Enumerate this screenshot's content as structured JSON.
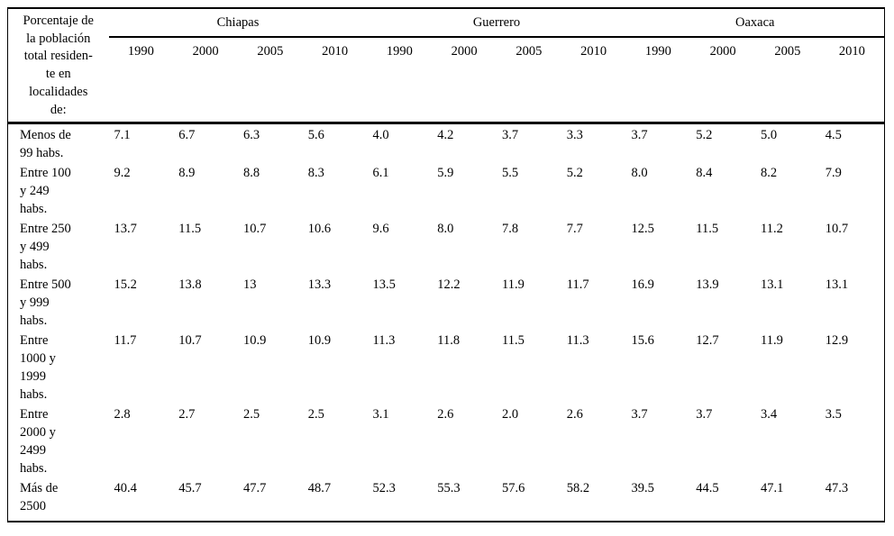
{
  "table": {
    "stub_header": "Porcentaje de\nla población\ntotal residen-\nte en\nlocalidades\nde:",
    "state_groups": [
      {
        "name": "Chiapas",
        "years": [
          "1990",
          "2000",
          "2005",
          "2010"
        ]
      },
      {
        "name": "Guerrero",
        "years": [
          "1990",
          "2000",
          "2005",
          "2010"
        ]
      },
      {
        "name": "Oaxaca",
        "years": [
          "1990",
          "2000",
          "2005",
          "2010"
        ]
      }
    ],
    "rows": [
      {
        "label": "Menos de\n99 habs.",
        "values": [
          "7.1",
          "6.7",
          "6.3",
          "5.6",
          "4.0",
          "4.2",
          "3.7",
          "3.3",
          "3.7",
          "5.2",
          "5.0",
          "4.5"
        ]
      },
      {
        "label": "Entre 100\ny 249\nhabs.",
        "values": [
          "9.2",
          "8.9",
          "8.8",
          "8.3",
          "6.1",
          "5.9",
          "5.5",
          "5.2",
          "8.0",
          "8.4",
          "8.2",
          "7.9"
        ]
      },
      {
        "label": "Entre 250\ny 499\nhabs.",
        "values": [
          "13.7",
          "11.5",
          "10.7",
          "10.6",
          "9.6",
          "8.0",
          "7.8",
          "7.7",
          "12.5",
          "11.5",
          "11.2",
          "10.7"
        ]
      },
      {
        "label": "Entre 500\ny 999\nhabs.",
        "values": [
          "15.2",
          "13.8",
          "13",
          "13.3",
          "13.5",
          "12.2",
          "11.9",
          "11.7",
          "16.9",
          "13.9",
          "13.1",
          "13.1"
        ]
      },
      {
        "label": "Entre\n1000 y\n1999\nhabs.",
        "values": [
          "11.7",
          "10.7",
          "10.9",
          "10.9",
          "11.3",
          "11.8",
          "11.5",
          "11.3",
          "15.6",
          "12.7",
          "11.9",
          "12.9"
        ]
      },
      {
        "label": "Entre\n2000 y\n2499\nhabs.",
        "values": [
          "2.8",
          "2.7",
          "2.5",
          "2.5",
          "3.1",
          "2.6",
          "2.0",
          "2.6",
          "3.7",
          "3.7",
          "3.4",
          "3.5"
        ]
      },
      {
        "label": "Más de\n2500",
        "values": [
          "40.4",
          "45.7",
          "47.7",
          "48.7",
          "52.3",
          "55.3",
          "57.6",
          "58.2",
          "39.5",
          "44.5",
          "47.1",
          "47.3"
        ]
      }
    ],
    "colors": {
      "text": "#000000",
      "rule": "#000000",
      "background": "#ffffff"
    }
  }
}
